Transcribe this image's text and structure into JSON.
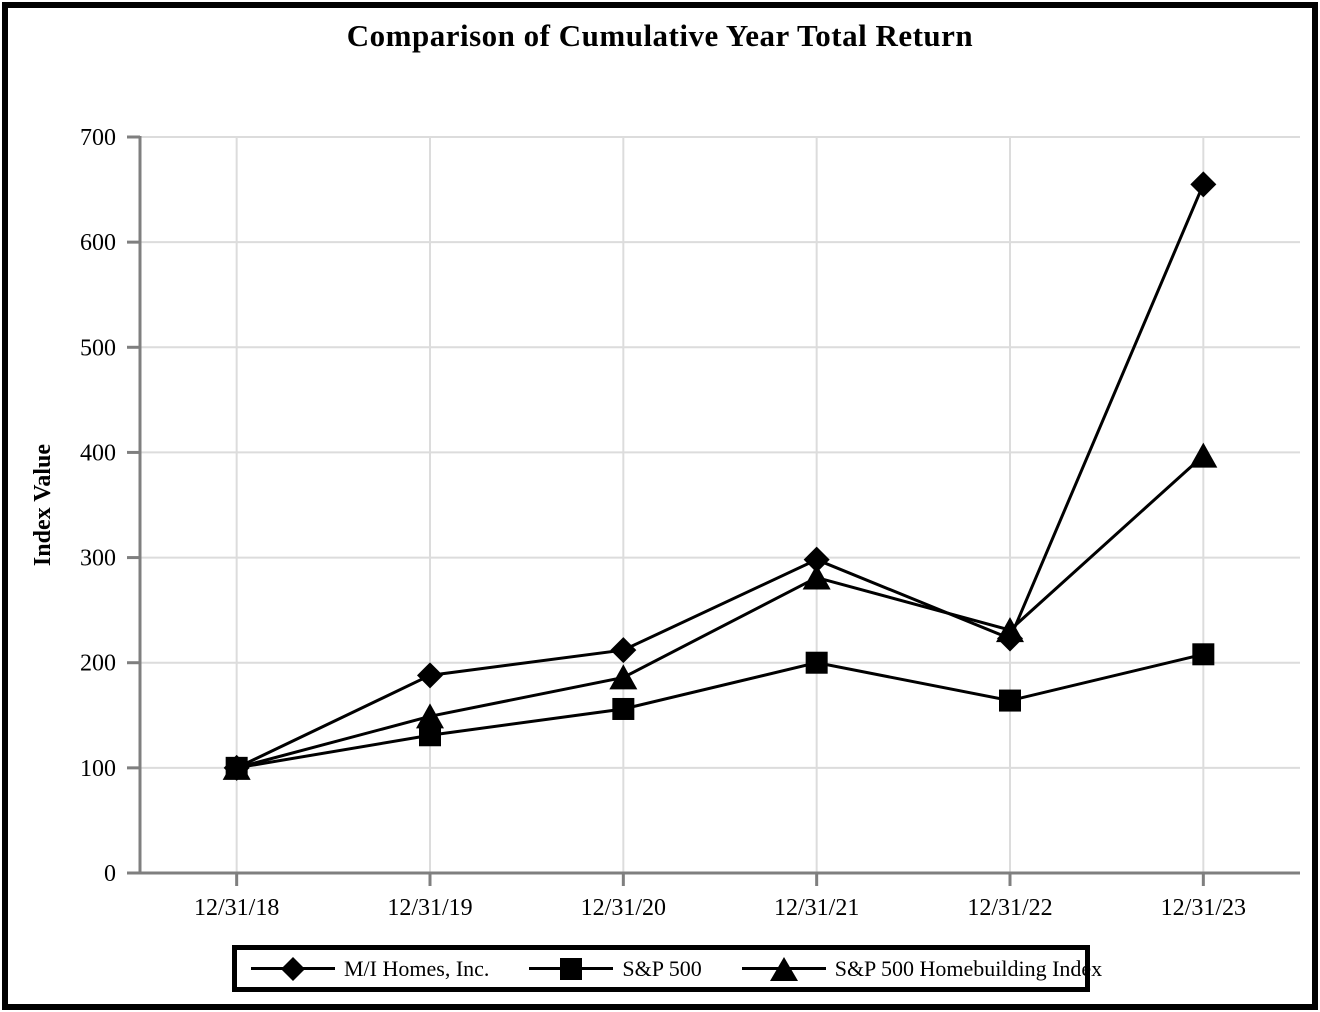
{
  "title": "Comparison of Cumulative Year Total Return",
  "chart_data": {
    "type": "line",
    "title": "Comparison of Cumulative Year Total Return",
    "xlabel": "",
    "ylabel": "Index Value",
    "x": [
      "12/31/18",
      "12/31/19",
      "12/31/20",
      "12/31/21",
      "12/31/22",
      "12/31/23"
    ],
    "series": [
      {
        "name": "M/I Homes, Inc.",
        "marker": "diamond",
        "values": [
          100,
          188,
          212,
          298,
          223,
          655
        ]
      },
      {
        "name": "S&P 500",
        "marker": "square",
        "values": [
          100,
          131,
          156,
          200,
          164,
          208
        ]
      },
      {
        "name": "S&P 500 Homebuilding Index",
        "marker": "triangle",
        "values": [
          100,
          149,
          186,
          281,
          231,
          397
        ]
      }
    ],
    "ylim": [
      0,
      700
    ],
    "yticks": [
      0,
      100,
      200,
      300,
      400,
      500,
      600,
      700
    ],
    "grid": true,
    "legend_position": "bottom",
    "colors": {
      "series_line": "#000000",
      "marker_fill": "#000000",
      "axis_line": "#7f7f7f",
      "grid_line": "#dcdcdc",
      "text": "#000000",
      "background": "#ffffff"
    }
  }
}
